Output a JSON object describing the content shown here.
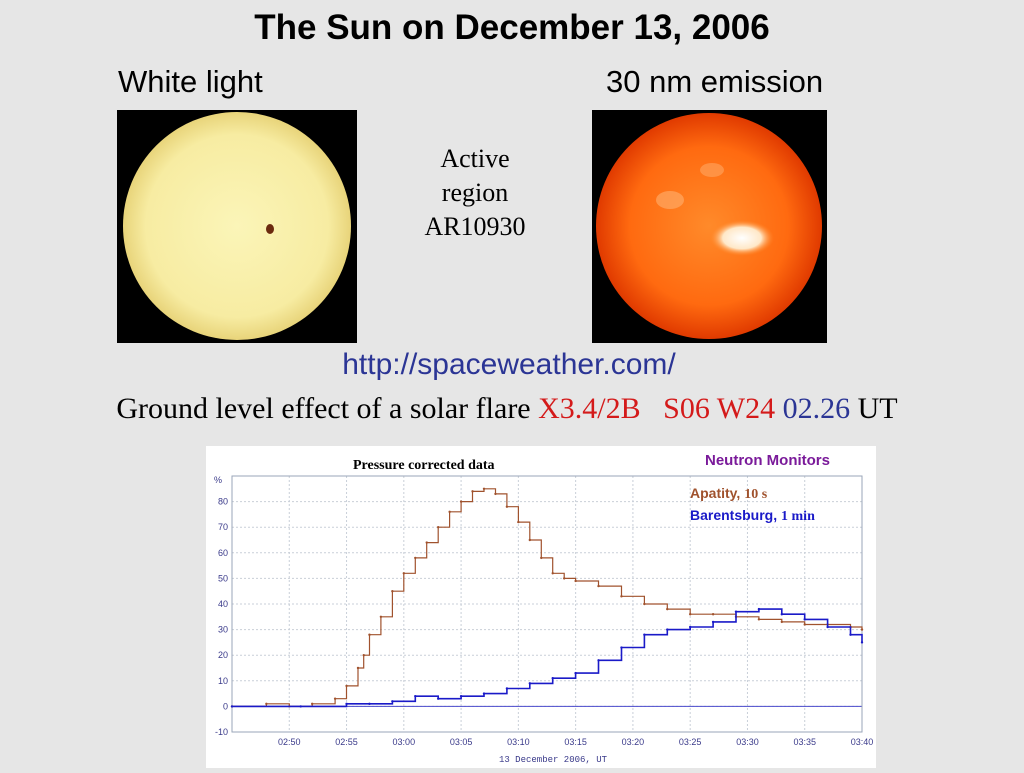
{
  "slide": {
    "title": "The Sun on December 13, 2006",
    "left_label": "White light",
    "right_label": "30 nm emission",
    "annotation": [
      "Active",
      "region",
      "AR10930"
    ],
    "url": "http://spaceweather.com/",
    "flare_text": "Ground level effect of a solar flare",
    "flare_class": "X3.4/2B",
    "flare_location": "S06 W24",
    "flare_time": "02.26",
    "flare_time_unit": "UT"
  },
  "colors": {
    "background": "#e6e6e6",
    "title_text": "#000000",
    "link": "#2b3595",
    "flare_highlight": "#d41a1a",
    "white_light_sun": "#f8f0a8",
    "emission_sun": "#ff6a10",
    "apatity_series": "#a0522d",
    "barentsburg_series": "#1a1ac8",
    "neutron_monitors_label": "#7a1a9a"
  },
  "chart_data": {
    "type": "line",
    "title": "Pressure corrected data",
    "legend_title": "Neutron Monitors",
    "ylabel": "%",
    "xlabel": "13 December 2006, UT",
    "legend_position": "top-right",
    "grid": true,
    "x_range": [
      "02:45",
      "03:40"
    ],
    "ylim": [
      -10,
      90
    ],
    "x_ticks": [
      "02:50",
      "02:55",
      "03:00",
      "03:05",
      "03:10",
      "03:15",
      "03:20",
      "03:25",
      "03:30",
      "03:35",
      "03:40"
    ],
    "y_ticks": [
      "-10",
      "0",
      "10",
      "20",
      "30",
      "40",
      "50",
      "60",
      "70",
      "80"
    ],
    "series": [
      {
        "name": "Apatity",
        "resolution": "10 s",
        "color": "#a0522d",
        "x_minutes_since_0245": [
          0,
          3,
          5,
          7,
          9,
          10,
          11,
          11.5,
          12,
          13,
          14,
          15,
          16,
          17,
          18,
          19,
          20,
          21,
          22,
          23,
          24,
          25,
          26,
          27,
          28,
          29,
          30,
          32,
          34,
          36,
          38,
          40,
          42,
          44,
          46,
          48,
          50,
          52,
          54,
          55
        ],
        "values": [
          0,
          1,
          0,
          1,
          3,
          8,
          15,
          20,
          28,
          35,
          45,
          52,
          58,
          64,
          70,
          76,
          80,
          84,
          85,
          83,
          78,
          72,
          65,
          58,
          52,
          50,
          49,
          47,
          43,
          40,
          38,
          36,
          36,
          35,
          34,
          33,
          32,
          32,
          31,
          30
        ]
      },
      {
        "name": "Barentsburg",
        "resolution": "1 min",
        "color": "#1a1ac8",
        "x_minutes_since_0245": [
          0,
          6,
          10,
          12,
          14,
          16,
          18,
          20,
          22,
          24,
          26,
          28,
          30,
          32,
          34,
          36,
          38,
          40,
          42,
          44,
          46,
          48,
          50,
          52,
          54,
          55
        ],
        "values": [
          0,
          0,
          1,
          1,
          2,
          4,
          3,
          4,
          5,
          7,
          9,
          11,
          13,
          18,
          23,
          28,
          30,
          31,
          33,
          37,
          38,
          36,
          34,
          31,
          28,
          25
        ]
      }
    ]
  }
}
